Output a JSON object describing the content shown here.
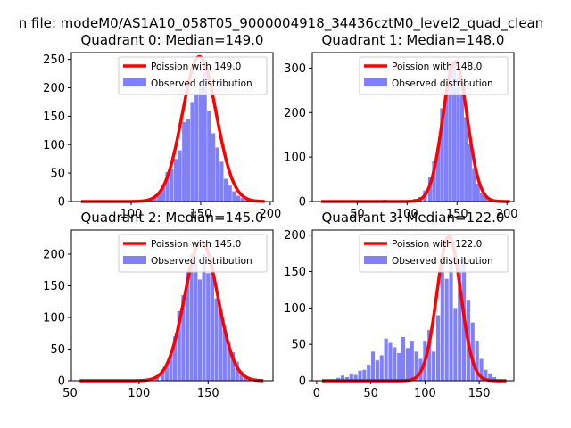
{
  "figure_title": "n file: modeM0/AS1A10_058T05_9000004918_34436cztM0_level2_quad_clean",
  "colors": {
    "bars": "#8080ff",
    "poisson": "#ff0000",
    "axis": "#000000",
    "background": "#ffffff"
  },
  "chart_data": [
    {
      "type": "bar",
      "title": "Quadrant 0: Median=149.0",
      "xlim": [
        57,
        202
      ],
      "ylim": [
        0,
        262
      ],
      "xticks": [
        100,
        150,
        200
      ],
      "yticks": [
        0,
        50,
        100,
        150,
        200,
        250
      ],
      "legend": {
        "placement": "top-right",
        "entries": [
          "Poission with 149.0",
          "Observed distribution"
        ]
      },
      "poisson_mean": 149.0,
      "poisson_peak": 255,
      "poisson_x_range": [
        64,
        196
      ],
      "bin_width": 2.75,
      "bins": [
        [
          114,
          4
        ],
        [
          117,
          8
        ],
        [
          120,
          15
        ],
        [
          123,
          25
        ],
        [
          126,
          52
        ],
        [
          129,
          58
        ],
        [
          132,
          75
        ],
        [
          135,
          90
        ],
        [
          138,
          140
        ],
        [
          141,
          145
        ],
        [
          144,
          175
        ],
        [
          147,
          190
        ],
        [
          150,
          210
        ],
        [
          153,
          240
        ],
        [
          156,
          160
        ],
        [
          159,
          120
        ],
        [
          162,
          95
        ],
        [
          165,
          70
        ],
        [
          168,
          40
        ],
        [
          171,
          28
        ],
        [
          174,
          18
        ],
        [
          177,
          10
        ],
        [
          180,
          6
        ],
        [
          183,
          3
        ]
      ]
    },
    {
      "type": "bar",
      "title": "Quadrant 1: Median=148.0",
      "xlim": [
        5,
        207
      ],
      "ylim": [
        0,
        335
      ],
      "xticks": [
        50,
        100,
        150,
        200
      ],
      "yticks": [
        0,
        100,
        200,
        300
      ],
      "legend": {
        "placement": "top-right",
        "entries": [
          "Poission with 148.0",
          "Observed distribution"
        ]
      },
      "poisson_mean": 148.0,
      "poisson_peak": 315,
      "poisson_x_range": [
        14,
        203
      ],
      "bin_width": 3.8,
      "bins": [
        [
          68,
          3
        ],
        [
          73,
          2
        ],
        [
          78,
          4
        ],
        [
          88,
          3
        ],
        [
          98,
          2
        ],
        [
          108,
          6
        ],
        [
          113,
          10
        ],
        [
          118,
          25
        ],
        [
          123,
          55
        ],
        [
          127,
          90
        ],
        [
          131,
          120
        ],
        [
          135,
          210
        ],
        [
          139,
          240
        ],
        [
          143,
          300
        ],
        [
          147,
          310
        ],
        [
          151,
          280
        ],
        [
          155,
          240
        ],
        [
          159,
          190
        ],
        [
          163,
          130
        ],
        [
          167,
          75
        ],
        [
          171,
          40
        ],
        [
          175,
          20
        ],
        [
          179,
          10
        ],
        [
          183,
          5
        ]
      ]
    },
    {
      "type": "bar",
      "title": "Quadrant 2: Median=145.0",
      "xlim": [
        51,
        197
      ],
      "ylim": [
        0,
        238
      ],
      "xticks": [
        50,
        100,
        150
      ],
      "yticks": [
        0,
        50,
        100,
        150,
        200
      ],
      "legend": {
        "placement": "top-right",
        "entries": [
          "Poission with 145.0",
          "Observed distribution"
        ]
      },
      "poisson_mean": 145.0,
      "poisson_peak": 220,
      "poisson_x_range": [
        57,
        190
      ],
      "bin_width": 2.7,
      "bins": [
        [
          91,
          2
        ],
        [
          108,
          3
        ],
        [
          113,
          6
        ],
        [
          117,
          14
        ],
        [
          120,
          24
        ],
        [
          123,
          40
        ],
        [
          126,
          70
        ],
        [
          129,
          110
        ],
        [
          132,
          135
        ],
        [
          135,
          175
        ],
        [
          138,
          200
        ],
        [
          141,
          185
        ],
        [
          144,
          160
        ],
        [
          147,
          200
        ],
        [
          150,
          170
        ],
        [
          153,
          175
        ],
        [
          156,
          130
        ],
        [
          159,
          110
        ],
        [
          162,
          80
        ],
        [
          165,
          60
        ],
        [
          168,
          45
        ],
        [
          171,
          30
        ],
        [
          174,
          15
        ],
        [
          177,
          8
        ],
        [
          180,
          3
        ]
      ]
    },
    {
      "type": "bar",
      "title": "Quadrant 3: Median=122.0",
      "xlim": [
        -4,
        182
      ],
      "ylim": [
        0,
        207
      ],
      "xticks": [
        0,
        50,
        100,
        150
      ],
      "yticks": [
        0,
        50,
        100,
        150,
        200
      ],
      "legend": {
        "placement": "top-right",
        "entries": [
          "Poission with 122.0",
          "Observed distribution"
        ]
      },
      "poisson_mean": 122.0,
      "poisson_peak": 198,
      "poisson_x_range": [
        5,
        175
      ],
      "bin_width": 3.4,
      "bins": [
        [
          14,
          2
        ],
        [
          20,
          4
        ],
        [
          24,
          7
        ],
        [
          28,
          5
        ],
        [
          32,
          10
        ],
        [
          36,
          8
        ],
        [
          40,
          14
        ],
        [
          44,
          15
        ],
        [
          48,
          22
        ],
        [
          52,
          40
        ],
        [
          56,
          28
        ],
        [
          60,
          35
        ],
        [
          64,
          58
        ],
        [
          68,
          52
        ],
        [
          72,
          46
        ],
        [
          76,
          38
        ],
        [
          80,
          60
        ],
        [
          84,
          45
        ],
        [
          88,
          55
        ],
        [
          92,
          40
        ],
        [
          96,
          30
        ],
        [
          100,
          55
        ],
        [
          104,
          70
        ],
        [
          108,
          40
        ],
        [
          112,
          90
        ],
        [
          116,
          160
        ],
        [
          120,
          140
        ],
        [
          124,
          170
        ],
        [
          128,
          100
        ],
        [
          132,
          160
        ],
        [
          136,
          170
        ],
        [
          140,
          110
        ],
        [
          144,
          80
        ],
        [
          148,
          55
        ],
        [
          152,
          30
        ],
        [
          156,
          15
        ],
        [
          160,
          10
        ],
        [
          164,
          5
        ]
      ]
    }
  ]
}
